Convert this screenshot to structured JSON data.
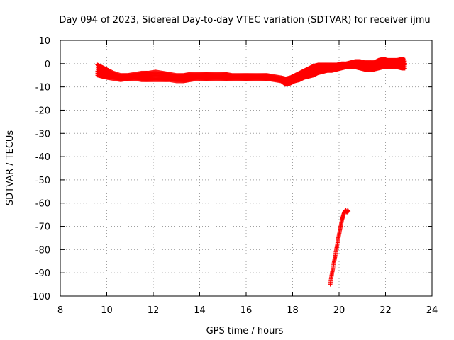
{
  "chart_data": {
    "type": "scatter",
    "title": "Day 094 of 2023, Sidereal Day-to-day VTEC variation (SDTVAR) for receiver ijmu",
    "xlabel": "GPS time / hours",
    "ylabel": "SDTVAR / TECUs",
    "xlim": [
      8,
      24
    ],
    "ylim": [
      -100,
      10
    ],
    "xticks": [
      8,
      10,
      12,
      14,
      16,
      18,
      20,
      22,
      24
    ],
    "yticks": [
      10,
      0,
      -10,
      -20,
      -30,
      -40,
      -50,
      -60,
      -70,
      -80,
      -90,
      -100
    ],
    "xtick_labels": [
      "8",
      "10",
      "12",
      "14",
      "16",
      "18",
      "20",
      "22",
      "24"
    ],
    "ytick_labels": [
      "10",
      "0",
      "-10",
      "-20",
      "-30",
      "-40",
      "-50",
      "-60",
      "-70",
      "-80",
      "-90",
      "-100"
    ],
    "grid": true,
    "marker": "plus",
    "color": "#ff0000",
    "band": {
      "x": [
        9.6,
        9.8,
        10.0,
        10.3,
        10.6,
        10.9,
        11.2,
        11.5,
        11.8,
        12.1,
        12.4,
        12.7,
        13.0,
        13.3,
        13.6,
        13.9,
        14.2,
        14.5,
        14.8,
        15.1,
        15.4,
        15.7,
        16.0,
        16.3,
        16.6,
        16.9,
        17.2,
        17.5,
        17.7,
        17.9,
        18.1,
        18.3,
        18.5,
        18.7,
        18.9,
        19.1,
        19.3,
        19.5,
        19.7,
        19.9,
        20.1,
        20.3,
        20.5,
        20.7,
        20.9,
        21.1,
        21.3,
        21.5,
        21.7,
        21.9,
        22.1,
        22.3,
        22.5,
        22.7,
        22.85
      ],
      "upper": [
        -0.5,
        -1.5,
        -2.5,
        -4.0,
        -5.0,
        -5.0,
        -4.5,
        -4.0,
        -4.0,
        -3.5,
        -4.0,
        -4.5,
        -5.0,
        -5.0,
        -4.5,
        -4.5,
        -4.5,
        -4.5,
        -4.5,
        -4.5,
        -5.0,
        -5.0,
        -5.0,
        -5.0,
        -5.0,
        -5.0,
        -5.5,
        -6.0,
        -6.5,
        -6.0,
        -5.0,
        -4.0,
        -3.0,
        -2.0,
        -1.0,
        -0.5,
        -0.5,
        -0.5,
        -0.5,
        -0.5,
        0.0,
        0.0,
        0.5,
        1.0,
        1.0,
        0.5,
        0.5,
        0.5,
        1.5,
        2.0,
        1.5,
        1.5,
        1.5,
        2.0,
        1.5
      ],
      "lower": [
        -5.0,
        -5.5,
        -6.0,
        -6.5,
        -7.0,
        -6.5,
        -6.5,
        -7.0,
        -7.0,
        -7.0,
        -7.0,
        -7.0,
        -7.5,
        -7.5,
        -7.0,
        -6.5,
        -6.5,
        -6.5,
        -6.5,
        -6.5,
        -6.5,
        -6.5,
        -6.5,
        -6.5,
        -6.5,
        -6.5,
        -7.0,
        -7.5,
        -9.0,
        -8.5,
        -7.5,
        -7.0,
        -6.0,
        -5.5,
        -5.0,
        -4.0,
        -3.5,
        -3.0,
        -3.0,
        -2.5,
        -2.0,
        -1.5,
        -1.5,
        -1.5,
        -2.0,
        -2.5,
        -2.5,
        -2.5,
        -2.0,
        -1.5,
        -1.5,
        -1.5,
        -1.5,
        -2.0,
        -2.0
      ]
    },
    "outlier_series": {
      "x": [
        19.62,
        19.65,
        19.68,
        19.71,
        19.74,
        19.77,
        19.8,
        19.83,
        19.86,
        19.89,
        19.92,
        19.95,
        19.98,
        20.01,
        20.04,
        20.07,
        20.1,
        20.13,
        20.16,
        20.19,
        20.22,
        20.25,
        20.28,
        20.31,
        20.34,
        20.37,
        20.4
      ],
      "y": [
        -95,
        -93,
        -91,
        -89.5,
        -88,
        -86,
        -84.5,
        -83,
        -81,
        -79.5,
        -78,
        -76,
        -74.5,
        -73,
        -71.5,
        -70,
        -68.5,
        -67,
        -66,
        -65,
        -64,
        -63.5,
        -63,
        -63.5,
        -64,
        -63,
        -63.5
      ]
    }
  }
}
